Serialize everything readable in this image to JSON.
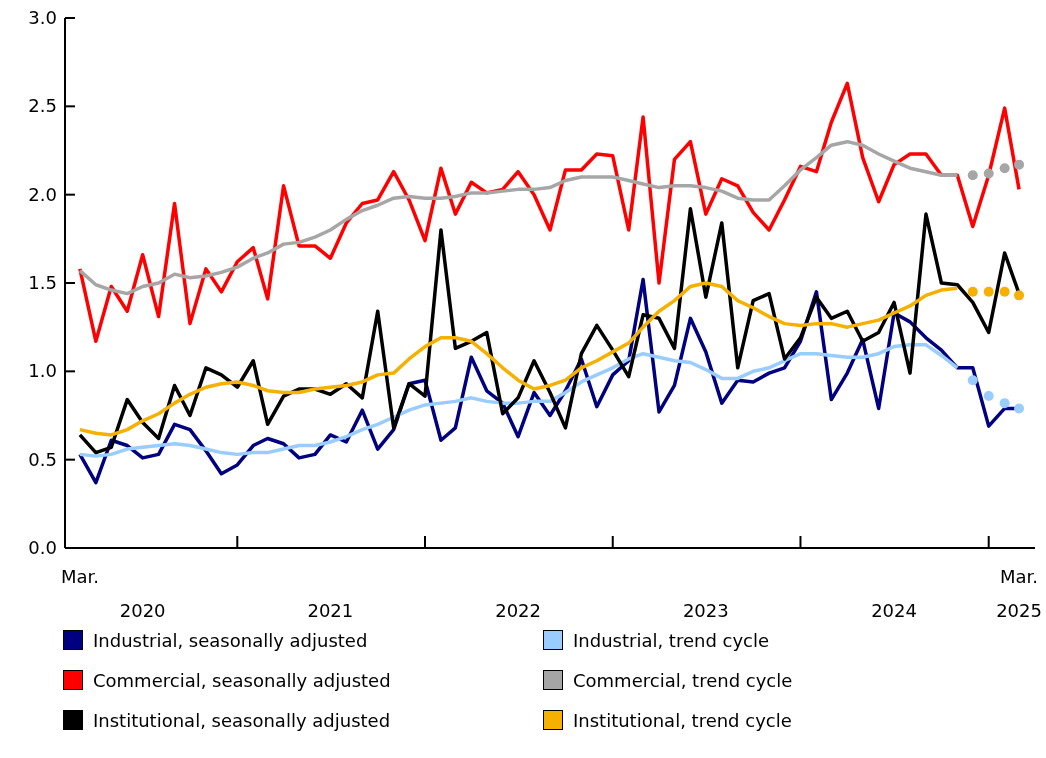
{
  "chart_data": {
    "type": "line",
    "x": [
      "2020-03",
      "2020-04",
      "2020-05",
      "2020-06",
      "2020-07",
      "2020-08",
      "2020-09",
      "2020-10",
      "2020-11",
      "2020-12",
      "2021-01",
      "2021-02",
      "2021-03",
      "2021-04",
      "2021-05",
      "2021-06",
      "2021-07",
      "2021-08",
      "2021-09",
      "2021-10",
      "2021-11",
      "2021-12",
      "2022-01",
      "2022-02",
      "2022-03",
      "2022-04",
      "2022-05",
      "2022-06",
      "2022-07",
      "2022-08",
      "2022-09",
      "2022-10",
      "2022-11",
      "2022-12",
      "2023-01",
      "2023-02",
      "2023-03",
      "2023-04",
      "2023-05",
      "2023-06",
      "2023-07",
      "2023-08",
      "2023-09",
      "2023-10",
      "2023-11",
      "2023-12",
      "2024-01",
      "2024-02",
      "2024-03",
      "2024-04",
      "2024-05",
      "2024-06",
      "2024-07",
      "2024-08",
      "2024-09",
      "2024-10",
      "2024-11",
      "2024-12",
      "2025-01",
      "2025-02",
      "2025-03"
    ],
    "series": [
      {
        "name": "Industrial, seasonally adjusted",
        "color": "#000080",
        "values": [
          0.53,
          0.37,
          0.61,
          0.58,
          0.51,
          0.53,
          0.7,
          0.67,
          0.55,
          0.42,
          0.47,
          0.58,
          0.62,
          0.59,
          0.51,
          0.53,
          0.64,
          0.6,
          0.78,
          0.56,
          0.67,
          0.93,
          0.95,
          0.61,
          0.68,
          1.08,
          0.89,
          0.82,
          0.63,
          0.88,
          0.75,
          0.89,
          1.07,
          0.8,
          0.98,
          1.06,
          1.52,
          0.77,
          0.92,
          1.3,
          1.11,
          0.82,
          0.95,
          0.94,
          0.99,
          1.02,
          1.17,
          1.45,
          0.84,
          0.99,
          1.18,
          0.79,
          1.33,
          1.28,
          1.19,
          1.12,
          1.02,
          1.02,
          0.69,
          0.79,
          0.79
        ]
      },
      {
        "name": "Industrial, trend cycle",
        "color": "#99ccff",
        "values": [
          0.53,
          0.52,
          0.53,
          0.56,
          0.57,
          0.58,
          0.59,
          0.58,
          0.56,
          0.54,
          0.53,
          0.54,
          0.54,
          0.56,
          0.58,
          0.58,
          0.6,
          0.63,
          0.67,
          0.7,
          0.74,
          0.78,
          0.81,
          0.82,
          0.83,
          0.85,
          0.83,
          0.82,
          0.82,
          0.83,
          0.83,
          0.88,
          0.94,
          0.98,
          1.02,
          1.07,
          1.1,
          1.08,
          1.06,
          1.05,
          1.01,
          0.96,
          0.96,
          1.0,
          1.02,
          1.06,
          1.1,
          1.1,
          1.09,
          1.08,
          1.08,
          1.1,
          1.14,
          1.15,
          1.15,
          1.09,
          1.02,
          null,
          null,
          null,
          null
        ]
      },
      {
        "name": "Commercial, seasonally adjusted",
        "color": "#ff0000",
        "values": [
          1.58,
          1.17,
          1.48,
          1.34,
          1.66,
          1.31,
          1.95,
          1.27,
          1.58,
          1.45,
          1.62,
          1.7,
          1.41,
          2.05,
          1.71,
          1.71,
          1.64,
          1.84,
          1.95,
          1.97,
          2.13,
          1.97,
          1.74,
          2.15,
          1.89,
          2.07,
          2.01,
          2.03,
          2.13,
          2.0,
          1.8,
          2.14,
          2.14,
          2.23,
          2.22,
          1.8,
          2.44,
          1.5,
          2.2,
          2.3,
          1.89,
          2.09,
          2.05,
          1.9,
          1.8,
          1.97,
          2.16,
          2.13,
          2.41,
          2.63,
          2.21,
          1.96,
          2.17,
          2.23,
          2.23,
          2.11,
          2.11,
          1.82,
          2.11,
          2.49,
          2.03
        ]
      },
      {
        "name": "Commercial, trend cycle",
        "color": "#a6a6a6",
        "values": [
          1.57,
          1.49,
          1.46,
          1.44,
          1.48,
          1.5,
          1.55,
          1.53,
          1.54,
          1.56,
          1.59,
          1.64,
          1.67,
          1.72,
          1.73,
          1.76,
          1.8,
          1.86,
          1.91,
          1.94,
          1.98,
          1.99,
          1.98,
          1.98,
          1.99,
          2.01,
          2.01,
          2.02,
          2.03,
          2.03,
          2.04,
          2.08,
          2.1,
          2.1,
          2.1,
          2.08,
          2.06,
          2.04,
          2.05,
          2.05,
          2.04,
          2.02,
          1.98,
          1.97,
          1.97,
          2.05,
          2.14,
          2.21,
          2.28,
          2.3,
          2.28,
          2.23,
          2.19,
          2.15,
          2.13,
          2.11,
          2.11,
          null,
          null,
          null,
          null
        ]
      },
      {
        "name": "Institutional, seasonally adjusted",
        "color": "#000000",
        "values": [
          0.64,
          0.54,
          0.57,
          0.84,
          0.71,
          0.62,
          0.92,
          0.75,
          1.02,
          0.98,
          0.91,
          1.06,
          0.7,
          0.86,
          0.9,
          0.9,
          0.87,
          0.93,
          0.85,
          1.34,
          0.68,
          0.93,
          0.86,
          1.8,
          1.13,
          1.17,
          1.22,
          0.76,
          0.85,
          1.06,
          0.88,
          0.68,
          1.1,
          1.26,
          1.12,
          0.97,
          1.32,
          1.3,
          1.13,
          1.92,
          1.42,
          1.84,
          1.02,
          1.4,
          1.44,
          1.07,
          1.19,
          1.42,
          1.3,
          1.34,
          1.17,
          1.22,
          1.39,
          0.99,
          1.89,
          1.5,
          1.49,
          1.39,
          1.22,
          1.67,
          1.44
        ]
      },
      {
        "name": "Institutional, trend cycle",
        "color": "#f5b000",
        "values": [
          0.67,
          0.65,
          0.64,
          0.67,
          0.72,
          0.76,
          0.82,
          0.87,
          0.91,
          0.93,
          0.94,
          0.92,
          0.89,
          0.88,
          0.88,
          0.9,
          0.91,
          0.92,
          0.94,
          0.98,
          0.99,
          1.07,
          1.14,
          1.19,
          1.19,
          1.17,
          1.1,
          1.02,
          0.95,
          0.9,
          0.92,
          0.95,
          1.02,
          1.06,
          1.11,
          1.16,
          1.25,
          1.34,
          1.4,
          1.48,
          1.5,
          1.48,
          1.4,
          1.36,
          1.31,
          1.27,
          1.26,
          1.27,
          1.27,
          1.25,
          1.27,
          1.29,
          1.33,
          1.37,
          1.43,
          1.46,
          1.47,
          null,
          null,
          null,
          null
        ]
      },
      {
        "type": "scatter",
        "color": "#99ccff",
        "marker": "circle",
        "x": [
          "2024-12",
          "2025-01",
          "2025-02",
          "2025-03"
        ],
        "values": [
          0.95,
          0.86,
          0.82,
          0.79
        ]
      },
      {
        "type": "scatter",
        "color": "#a6a6a6",
        "marker": "circle",
        "x": [
          "2024-12",
          "2025-01",
          "2025-02",
          "2025-03"
        ],
        "values": [
          2.11,
          2.12,
          2.15,
          2.17
        ]
      },
      {
        "type": "scatter",
        "color": "#f5b000",
        "marker": "circle",
        "x": [
          "2024-12",
          "2025-01",
          "2025-02",
          "2025-03"
        ],
        "values": [
          1.45,
          1.45,
          1.45,
          1.43
        ]
      }
    ],
    "xlim": [
      "2020-02",
      "2025-04"
    ],
    "annotations": [
      "Mar.",
      "Mar."
    ],
    "xticks": [
      {
        "value": "2020-07",
        "label": "2020"
      },
      {
        "value": "2021-01",
        "label": null
      },
      {
        "value": "2021-07",
        "label": "2021"
      },
      {
        "value": "2022-01",
        "label": null
      },
      {
        "value": "2022-07",
        "label": "2022"
      },
      {
        "value": "2023-01",
        "label": null
      },
      {
        "value": "2023-07",
        "label": "2023"
      },
      {
        "value": "2024-01",
        "label": null
      },
      {
        "value": "2024-07",
        "label": "2024"
      },
      {
        "value": "2025-01",
        "label": null
      },
      {
        "value": "2025-03",
        "label": "2025"
      }
    ],
    "ylim": [
      0,
      3
    ],
    "yticks": [
      {
        "value": 0,
        "label": "0.0"
      },
      {
        "value": 0.5,
        "label": "0.5"
      },
      {
        "value": 1,
        "label": "1.0"
      },
      {
        "value": 1.5,
        "label": "1.5"
      },
      {
        "value": 2,
        "label": "2.0"
      },
      {
        "value": 2.5,
        "label": "2.5"
      },
      {
        "value": 3,
        "label": "3.0"
      }
    ],
    "grid": false,
    "legend": "bottom"
  }
}
